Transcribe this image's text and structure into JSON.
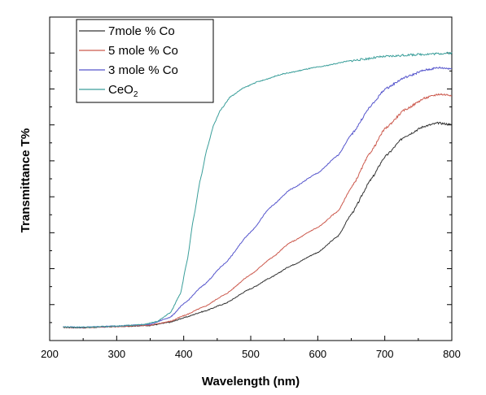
{
  "chart_data": {
    "type": "line",
    "xlabel": "Wavelength (nm)",
    "ylabel": "Transmittance T%",
    "xlim": [
      200,
      800
    ],
    "x_ticks": [
      "200",
      "300",
      "400",
      "500",
      "600",
      "700",
      "800"
    ],
    "y_ticks_labeled": false,
    "ylim": [
      0,
      100
    ],
    "grid": false,
    "legend_position": "top-left",
    "series": [
      {
        "name": "7mole % Co",
        "color": "#333333",
        "x": [
          220,
          250,
          300,
          350,
          380,
          400,
          430,
          460,
          500,
          530,
          560,
          600,
          630,
          650,
          680,
          700,
          730,
          760,
          780,
          800
        ],
        "y": [
          2.5,
          2.4,
          2.8,
          3.2,
          4.3,
          5.8,
          8.0,
          10.5,
          15.7,
          19.5,
          23.5,
          28.0,
          33.5,
          41.0,
          53.0,
          60.5,
          67.5,
          71.0,
          72.0,
          71.5
        ]
      },
      {
        "name": "5 mole % Co",
        "color": "#cc5a4e",
        "x": [
          220,
          250,
          300,
          350,
          380,
          400,
          430,
          460,
          500,
          530,
          560,
          600,
          630,
          650,
          680,
          700,
          730,
          760,
          780,
          800
        ],
        "y": [
          2.6,
          2.5,
          2.8,
          3.3,
          4.6,
          6.5,
          9.5,
          13.5,
          20.5,
          26.0,
          31.5,
          36.5,
          42.0,
          50.0,
          62.5,
          70.0,
          76.5,
          80.5,
          81.8,
          81.5
        ]
      },
      {
        "name": "3 mole % Co",
        "color": "#5555cc",
        "x": [
          220,
          250,
          300,
          350,
          380,
          400,
          430,
          460,
          500,
          530,
          560,
          600,
          630,
          650,
          680,
          700,
          730,
          760,
          780,
          800
        ],
        "y": [
          2.7,
          2.6,
          3.0,
          3.6,
          6.0,
          10.5,
          17.0,
          24.0,
          35.0,
          43.5,
          49.5,
          55.0,
          61.0,
          68.0,
          78.0,
          83.5,
          87.5,
          90.0,
          90.8,
          90.5
        ]
      },
      {
        "name": "CeO2",
        "color": "#3a9e9a",
        "x": [
          220,
          250,
          300,
          340,
          360,
          380,
          395,
          405,
          415,
          425,
          435,
          445,
          455,
          470,
          490,
          510,
          550,
          600,
          650,
          700,
          750,
          780,
          800
        ],
        "y": [
          2.7,
          2.6,
          3.0,
          3.5,
          4.5,
          7.5,
          14.0,
          25.0,
          40.0,
          53.0,
          63.5,
          71.5,
          76.5,
          81.0,
          84.0,
          86.0,
          88.8,
          91.0,
          93.2,
          94.6,
          95.3,
          95.6,
          95.8
        ]
      }
    ],
    "legend": [
      {
        "label": "7mole % Co",
        "sub": ""
      },
      {
        "label": "5 mole % Co",
        "sub": ""
      },
      {
        "label": "3 mole % Co",
        "sub": ""
      },
      {
        "label": "CeO",
        "sub": "2"
      }
    ]
  }
}
